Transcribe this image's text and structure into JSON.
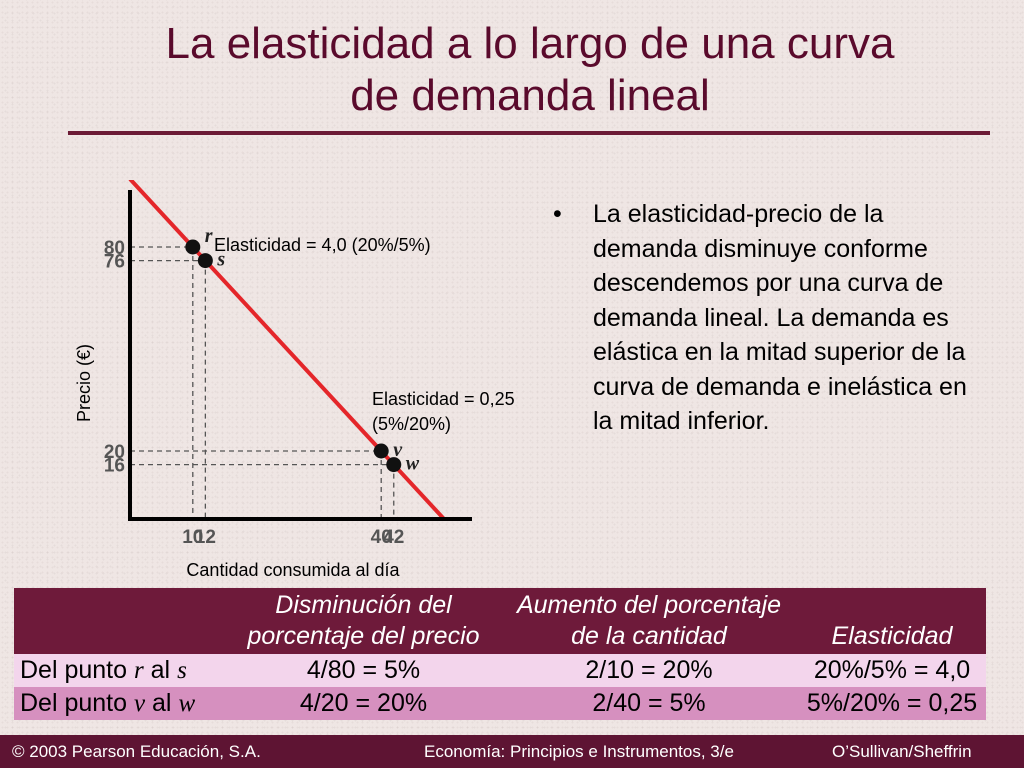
{
  "title_line1": "La elasticidad a lo largo de una curva",
  "title_line2": "de demanda lineal",
  "bullet_symbol": "•",
  "bullet_text": "La elasticidad-precio de la demanda disminuye conforme descendemos por una curva de demanda lineal. La demanda es elástica en la mitad superior de la curva de demanda e inelástica en la mitad inferior.",
  "chart_data": {
    "type": "line",
    "ylabel": "Precio (€)",
    "xlabel": "Cantidad consumida al día",
    "x_ticks": [
      "10",
      "12",
      "40",
      "42"
    ],
    "y_ticks": [
      "80",
      "76",
      "20",
      "16"
    ],
    "demand_line": {
      "x": [
        0,
        50
      ],
      "y": [
        100,
        0
      ]
    },
    "points": [
      {
        "label": "r",
        "x": 10,
        "y": 80
      },
      {
        "label": "s",
        "x": 12,
        "y": 76
      },
      {
        "label": "v",
        "x": 40,
        "y": 20
      },
      {
        "label": "w",
        "x": 42,
        "y": 16
      }
    ],
    "annotations": {
      "upper": "Elasticidad = 4,0 (20%/5%)",
      "lower_line1": "Elasticidad = 0,25",
      "lower_line2": "(5%/20%)"
    },
    "colors": {
      "demand": "#e4262a",
      "axis": "#000000",
      "dashed": "#555555"
    }
  },
  "table": {
    "headers": {
      "col1_line1": "Disminución del",
      "col1_line2": "porcentaje del precio",
      "col2_line1": "Aumento del porcentaje",
      "col2_line2": "de la cantidad",
      "col3": "Elasticidad"
    },
    "rows": [
      {
        "prefix": "Del punto ",
        "from": "r",
        "mid": " al ",
        "to": "s",
        "price": "4/80 = 5%",
        "qty": "2/10 = 20%",
        "elas": "20%/5% = 4,0"
      },
      {
        "prefix": "Del punto ",
        "from": "v",
        "mid": " al ",
        "to": "w",
        "price": "4/20 = 20%",
        "qty": "2/40 = 5%",
        "elas": "5%/20% = 0,25"
      }
    ]
  },
  "footer": {
    "left": "© 2003 Pearson Educación, S.A.",
    "center": "Economía: Principios e Instrumentos, 3/e",
    "right": "O’Sullivan/Sheffrin"
  }
}
